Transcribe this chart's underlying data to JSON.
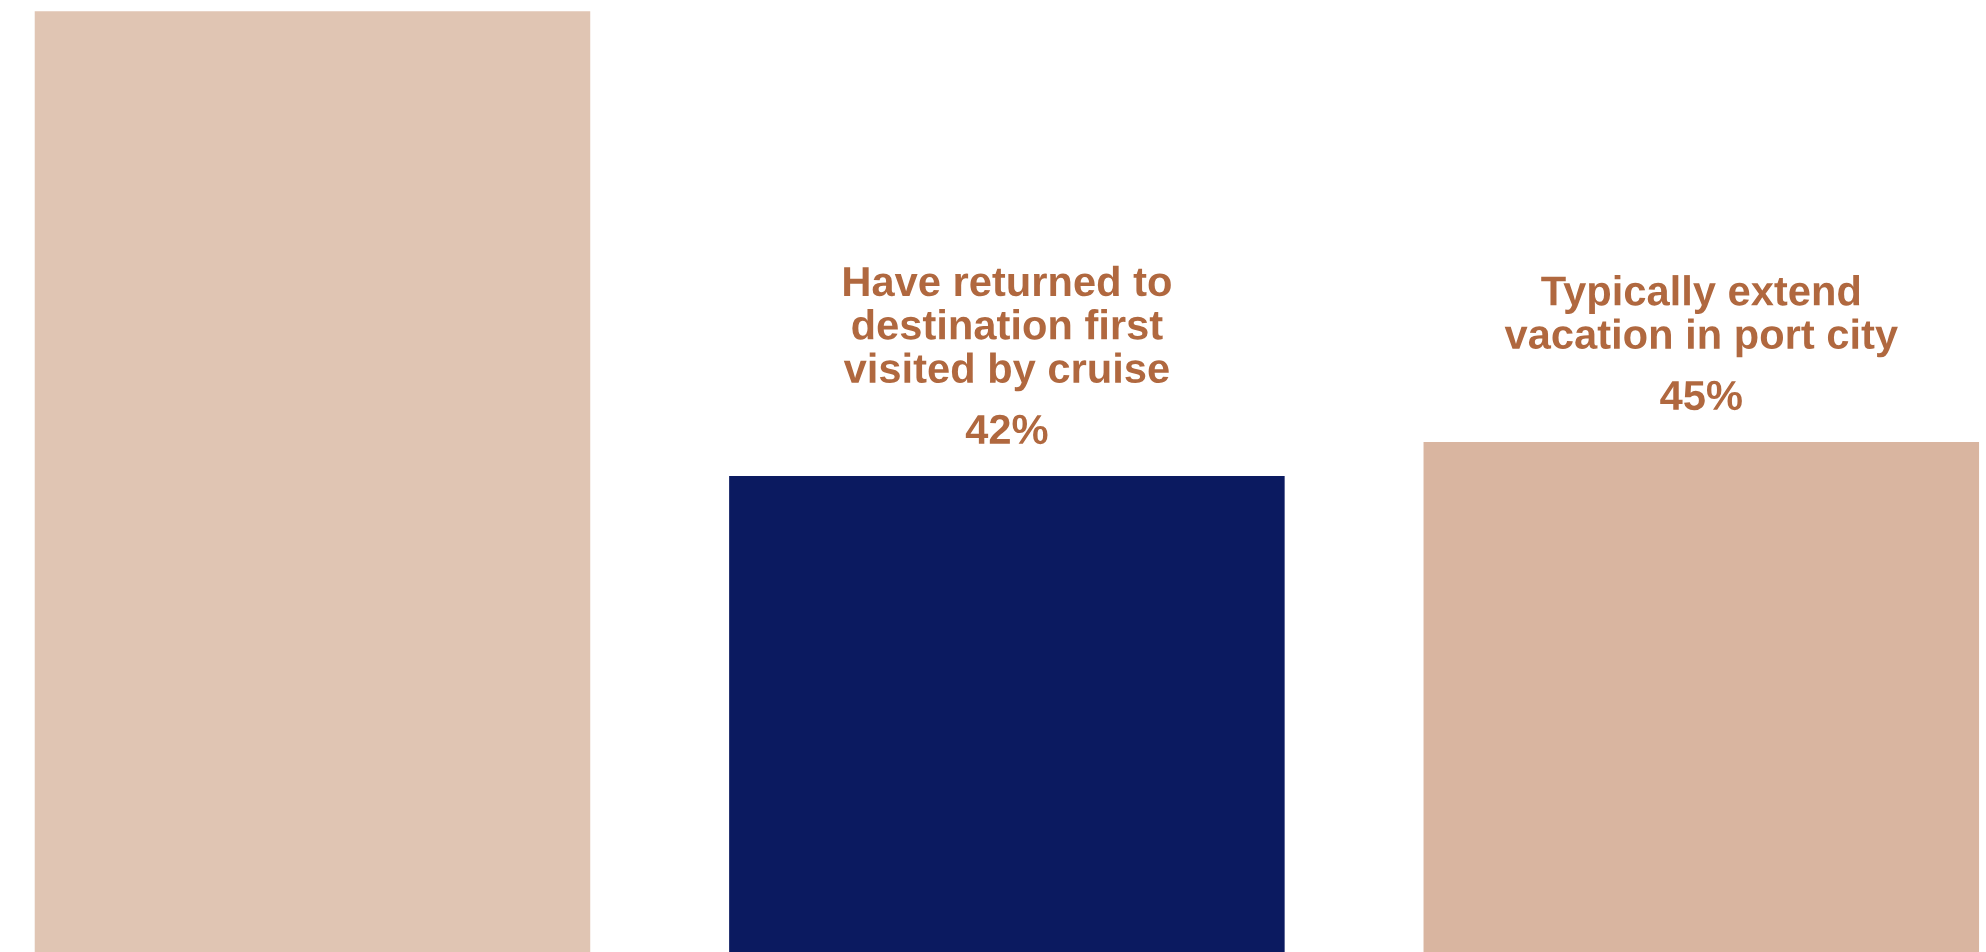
{
  "chart_data": {
    "type": "bar",
    "categories": [
      null,
      "Have returned to\ndestination first\nvisited by cruise",
      "Typically extend\nvacation in port city"
    ],
    "values": [
      83,
      42,
      45
    ],
    "value_labels": [
      null,
      "42%",
      "45%"
    ],
    "colors": [
      "#e0c5b3",
      "#0b1a60",
      "#d9b5a0"
    ]
  }
}
